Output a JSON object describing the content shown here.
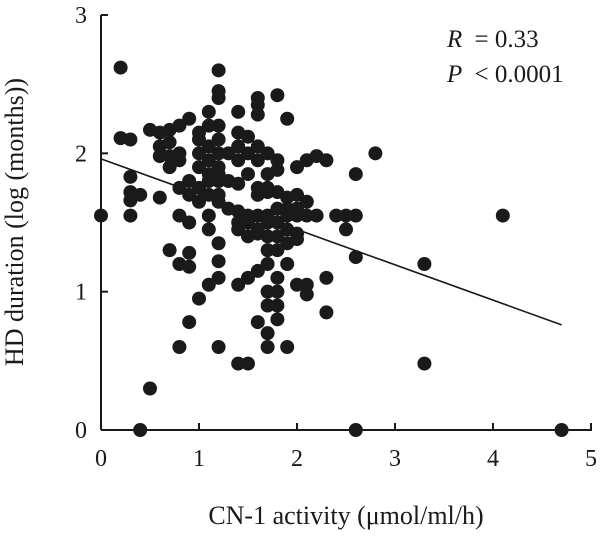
{
  "chart_data": {
    "type": "scatter",
    "xlabel": "CN-1 activity (μmol/ml/h)",
    "ylabel": "HD duration (log (months))",
    "xlim": [
      0,
      5
    ],
    "ylim": [
      0,
      3
    ],
    "x_ticks": [
      "0",
      "1",
      "2",
      "3",
      "4",
      "5"
    ],
    "y_ticks": [
      "0",
      "1",
      "2",
      "3"
    ],
    "annotations": {
      "r_label": "R",
      "r_value": "= 0.33",
      "p_label": "P",
      "p_value": "< 0.0001"
    },
    "regression_line": {
      "x": [
        0,
        4.7
      ],
      "y": [
        1.96,
        0.76
      ]
    },
    "points": [
      [
        0.0,
        1.55
      ],
      [
        0.2,
        2.62
      ],
      [
        0.2,
        2.11
      ],
      [
        0.3,
        2.1
      ],
      [
        0.3,
        1.83
      ],
      [
        0.3,
        1.72
      ],
      [
        0.3,
        1.66
      ],
      [
        0.3,
        1.55
      ],
      [
        0.4,
        1.7
      ],
      [
        0.4,
        0.0
      ],
      [
        0.5,
        2.17
      ],
      [
        0.5,
        0.3
      ],
      [
        0.6,
        2.15
      ],
      [
        0.6,
        2.05
      ],
      [
        0.6,
        1.98
      ],
      [
        0.6,
        1.68
      ],
      [
        0.7,
        2.17
      ],
      [
        0.7,
        2.08
      ],
      [
        0.7,
        1.98
      ],
      [
        0.7,
        1.9
      ],
      [
        0.7,
        1.3
      ],
      [
        0.8,
        2.2
      ],
      [
        0.8,
        2.0
      ],
      [
        0.8,
        1.95
      ],
      [
        0.8,
        1.75
      ],
      [
        0.8,
        1.55
      ],
      [
        0.8,
        1.2
      ],
      [
        0.8,
        0.6
      ],
      [
        0.9,
        2.25
      ],
      [
        0.9,
        1.8
      ],
      [
        0.9,
        1.7
      ],
      [
        0.9,
        1.5
      ],
      [
        0.9,
        1.28
      ],
      [
        0.9,
        1.18
      ],
      [
        0.9,
        0.78
      ],
      [
        1.0,
        2.15
      ],
      [
        1.0,
        2.1
      ],
      [
        1.0,
        2.0
      ],
      [
        1.0,
        1.9
      ],
      [
        1.0,
        1.75
      ],
      [
        1.0,
        1.65
      ],
      [
        1.0,
        0.95
      ],
      [
        1.1,
        2.3
      ],
      [
        1.1,
        2.2
      ],
      [
        1.1,
        2.05
      ],
      [
        1.1,
        1.95
      ],
      [
        1.1,
        1.85
      ],
      [
        1.1,
        1.8
      ],
      [
        1.1,
        1.7
      ],
      [
        1.1,
        1.55
      ],
      [
        1.1,
        1.45
      ],
      [
        1.1,
        1.05
      ],
      [
        1.2,
        2.6
      ],
      [
        1.2,
        2.45
      ],
      [
        1.2,
        2.4
      ],
      [
        1.2,
        2.2
      ],
      [
        1.2,
        2.1
      ],
      [
        1.2,
        2.0
      ],
      [
        1.2,
        1.9
      ],
      [
        1.2,
        1.85
      ],
      [
        1.2,
        1.8
      ],
      [
        1.2,
        1.7
      ],
      [
        1.2,
        1.65
      ],
      [
        1.2,
        1.35
      ],
      [
        1.2,
        1.22
      ],
      [
        1.2,
        1.1
      ],
      [
        1.2,
        0.6
      ],
      [
        1.3,
        2.0
      ],
      [
        1.3,
        1.8
      ],
      [
        1.3,
        1.6
      ],
      [
        1.4,
        2.3
      ],
      [
        1.4,
        2.15
      ],
      [
        1.4,
        2.05
      ],
      [
        1.4,
        1.95
      ],
      [
        1.4,
        1.78
      ],
      [
        1.4,
        1.58
      ],
      [
        1.4,
        1.5
      ],
      [
        1.4,
        1.45
      ],
      [
        1.4,
        1.05
      ],
      [
        1.4,
        0.48
      ],
      [
        1.5,
        2.12
      ],
      [
        1.5,
        2.0
      ],
      [
        1.5,
        1.85
      ],
      [
        1.5,
        1.55
      ],
      [
        1.5,
        1.5
      ],
      [
        1.5,
        1.4
      ],
      [
        1.5,
        1.1
      ],
      [
        1.5,
        0.48
      ],
      [
        1.6,
        2.4
      ],
      [
        1.6,
        2.35
      ],
      [
        1.6,
        2.28
      ],
      [
        1.6,
        2.05
      ],
      [
        1.6,
        1.95
      ],
      [
        1.6,
        1.75
      ],
      [
        1.6,
        1.7
      ],
      [
        1.6,
        1.55
      ],
      [
        1.6,
        1.45
      ],
      [
        1.6,
        1.42
      ],
      [
        1.6,
        1.15
      ],
      [
        1.6,
        0.78
      ],
      [
        1.7,
        2.0
      ],
      [
        1.7,
        1.85
      ],
      [
        1.7,
        1.75
      ],
      [
        1.7,
        1.72
      ],
      [
        1.7,
        1.55
      ],
      [
        1.7,
        1.5
      ],
      [
        1.7,
        1.4
      ],
      [
        1.7,
        1.3
      ],
      [
        1.7,
        1.2
      ],
      [
        1.7,
        1.0
      ],
      [
        1.7,
        0.9
      ],
      [
        1.7,
        0.7
      ],
      [
        1.7,
        0.6
      ],
      [
        1.8,
        2.42
      ],
      [
        1.8,
        1.95
      ],
      [
        1.8,
        1.88
      ],
      [
        1.8,
        1.72
      ],
      [
        1.8,
        1.6
      ],
      [
        1.8,
        1.5
      ],
      [
        1.8,
        1.4
      ],
      [
        1.8,
        1.3
      ],
      [
        1.8,
        1.1
      ],
      [
        1.8,
        1.0
      ],
      [
        1.8,
        0.9
      ],
      [
        1.8,
        0.8
      ],
      [
        1.9,
        2.25
      ],
      [
        1.9,
        1.68
      ],
      [
        1.9,
        1.6
      ],
      [
        1.9,
        1.55
      ],
      [
        1.9,
        1.45
      ],
      [
        1.9,
        1.35
      ],
      [
        1.9,
        1.2
      ],
      [
        1.9,
        0.6
      ],
      [
        2.0,
        1.9
      ],
      [
        2.0,
        1.7
      ],
      [
        2.0,
        1.6
      ],
      [
        2.0,
        1.55
      ],
      [
        2.0,
        1.42
      ],
      [
        2.0,
        1.38
      ],
      [
        2.0,
        1.05
      ],
      [
        2.1,
        1.95
      ],
      [
        2.1,
        1.65
      ],
      [
        2.1,
        1.55
      ],
      [
        2.1,
        1.05
      ],
      [
        2.1,
        0.98
      ],
      [
        2.2,
        1.98
      ],
      [
        2.2,
        1.55
      ],
      [
        2.3,
        1.95
      ],
      [
        2.3,
        1.1
      ],
      [
        2.3,
        0.85
      ],
      [
        2.4,
        1.55
      ],
      [
        2.5,
        1.55
      ],
      [
        2.5,
        1.45
      ],
      [
        2.6,
        1.85
      ],
      [
        2.6,
        1.55
      ],
      [
        2.6,
        1.25
      ],
      [
        2.6,
        0.0
      ],
      [
        2.8,
        2.0
      ],
      [
        3.3,
        1.2
      ],
      [
        3.3,
        0.48
      ],
      [
        4.1,
        1.55
      ],
      [
        4.7,
        0.0
      ]
    ]
  }
}
